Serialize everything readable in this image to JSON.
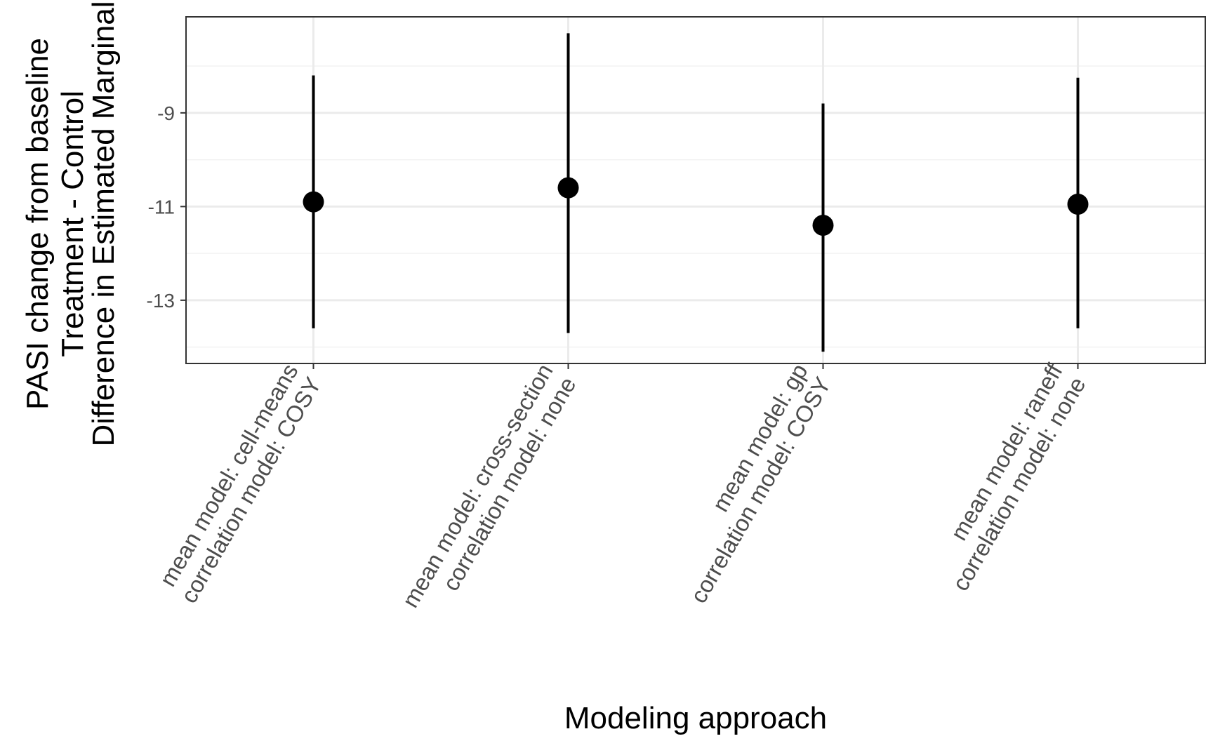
{
  "chart_data": {
    "type": "scatter",
    "subtype": "point-range",
    "xlabel": "Modeling approach",
    "ylabel_lines": [
      "PASI change from baseline",
      "Treatment - Control",
      "Difference in Estimated Marginal"
    ],
    "categories": [
      {
        "lines": [
          "mean model: cell-means",
          "correlation model: COSY"
        ]
      },
      {
        "lines": [
          "mean model: cross-section",
          "correlation model: none"
        ]
      },
      {
        "lines": [
          "mean model: gp",
          "correlation model: COSY"
        ]
      },
      {
        "lines": [
          "mean model: raneff",
          "correlation model: none"
        ]
      }
    ],
    "points": [
      {
        "estimate": -10.9,
        "lower": -13.6,
        "upper": -8.2
      },
      {
        "estimate": -10.6,
        "lower": -13.7,
        "upper": -7.3
      },
      {
        "estimate": -11.4,
        "lower": -14.1,
        "upper": -8.8
      },
      {
        "estimate": -10.95,
        "lower": -13.6,
        "upper": -8.25
      }
    ],
    "yticks": [
      -9,
      -11,
      -13
    ],
    "ylim": [
      -14.35,
      -6.95
    ],
    "grid": true,
    "legend": "none",
    "colors": {
      "point": "#000000",
      "major_grid": "#ebebeb",
      "minor_grid": "#f2f2f2",
      "panel_border": "#333333",
      "tick_text": "#4d4d4d"
    }
  }
}
